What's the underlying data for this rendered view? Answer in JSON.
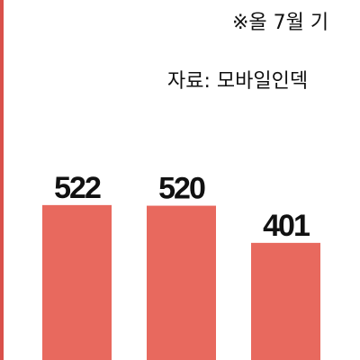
{
  "chart_data": {
    "type": "bar",
    "note": "※올 7월 기",
    "source": "자료: 모바일인덱",
    "categories": [
      null,
      null,
      null
    ],
    "values": [
      522,
      520,
      401
    ],
    "color": "#e8695e"
  }
}
